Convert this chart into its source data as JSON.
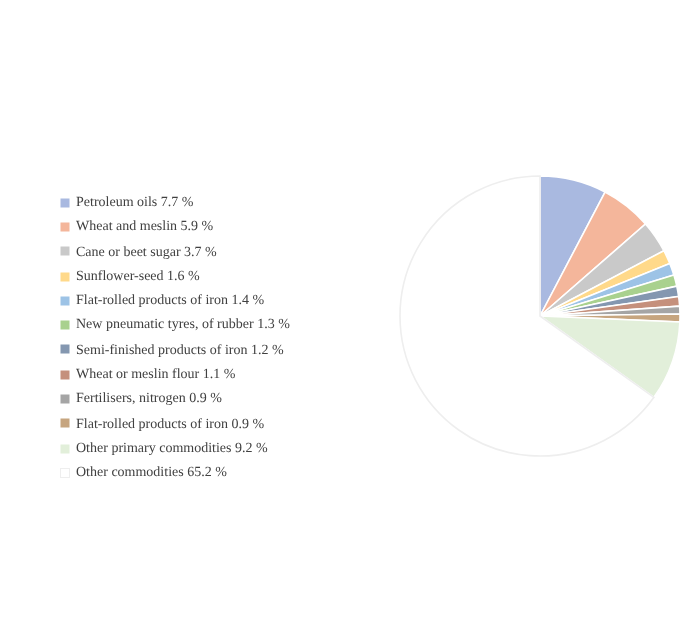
{
  "chart_data": {
    "type": "pie",
    "categories": [
      "Petroleum oils 7.7 %",
      "Wheat and meslin 5.9 %",
      "Cane or beet sugar 3.7 %",
      "Sunflower-seed 1.6 %",
      "Flat-rolled products of iron 1.4 %",
      "New pneumatic tyres, of rubber 1.3 %",
      "Semi-finished products of iron 1.2 %",
      "Wheat or meslin flour 1.1 %",
      "Fertilisers, nitrogen 0.9 %",
      "Flat-rolled products of iron 0.9 %",
      "Other primary commodities 9.2 %",
      "Other commodities 65.2 %"
    ],
    "values": [
      7.7,
      5.9,
      3.7,
      1.6,
      1.4,
      1.3,
      1.2,
      1.1,
      0.9,
      0.9,
      9.2,
      65.2
    ],
    "colors": [
      "#a9b9e0",
      "#f4b69b",
      "#c9c9c9",
      "#ffd98a",
      "#9dc3e6",
      "#a9d18e",
      "#8497b0",
      "#c5907c",
      "#a5a5a5",
      "#c6a57f",
      "#e2efda",
      "#ffffff"
    ],
    "legend": "left"
  }
}
